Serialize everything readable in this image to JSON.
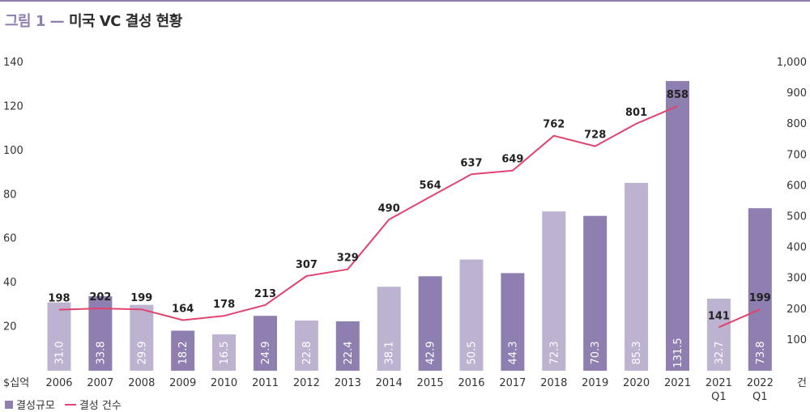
{
  "header": {
    "prefix": "그림 1 —",
    "title": "미국 VC 결성 현황"
  },
  "chart_data": {
    "type": "bar",
    "categories": [
      "2006",
      "2007",
      "2008",
      "2009",
      "2010",
      "2011",
      "2012",
      "2013",
      "2014",
      "2015",
      "2016",
      "2017",
      "2018",
      "2019",
      "2020",
      "2021",
      "2021 Q1",
      "2022 Q1"
    ],
    "category_lines": [
      [
        "2006"
      ],
      [
        "2007"
      ],
      [
        "2008"
      ],
      [
        "2009"
      ],
      [
        "2010"
      ],
      [
        "2011"
      ],
      [
        "2012"
      ],
      [
        "2013"
      ],
      [
        "2014"
      ],
      [
        "2015"
      ],
      [
        "2016"
      ],
      [
        "2017"
      ],
      [
        "2018"
      ],
      [
        "2019"
      ],
      [
        "2020"
      ],
      [
        "2021"
      ],
      [
        "2021",
        "Q1"
      ],
      [
        "2022",
        "Q1"
      ]
    ],
    "series": [
      {
        "name": "결성규모",
        "type": "bar",
        "axis": "left",
        "values": [
          31.0,
          33.8,
          29.9,
          18.2,
          16.5,
          24.9,
          22.8,
          22.4,
          38.1,
          42.9,
          50.5,
          44.3,
          72.3,
          70.3,
          85.3,
          131.5,
          32.7,
          73.8
        ],
        "value_labels": [
          "31.0",
          "33.8",
          "29.9",
          "18.2",
          "16.5",
          "24.9",
          "22.8",
          "22.4",
          "38.1",
          "42.9",
          "50.5",
          "44.3",
          "72.3",
          "70.3",
          "85.3",
          "131.5",
          "32.7",
          "73.8"
        ],
        "shade": [
          "light",
          "dark",
          "light",
          "dark",
          "light",
          "dark",
          "light",
          "dark",
          "light",
          "dark",
          "light",
          "dark",
          "light",
          "dark",
          "light",
          "dark",
          "light",
          "dark"
        ]
      },
      {
        "name": "결성 건수",
        "type": "line",
        "axis": "right",
        "values": [
          198,
          202,
          199,
          164,
          178,
          213,
          307,
          329,
          490,
          564,
          637,
          649,
          762,
          728,
          801,
          858,
          141,
          199
        ],
        "value_labels": [
          "198",
          "202",
          "199",
          "164",
          "178",
          "213",
          "307",
          "329",
          "490",
          "564",
          "637",
          "649",
          "762",
          "728",
          "801",
          "858",
          "141",
          "199"
        ],
        "segments": [
          [
            0,
            15
          ],
          [
            16,
            17
          ]
        ]
      }
    ],
    "y_left": {
      "ticks": [
        20,
        40,
        60,
        80,
        100,
        120,
        140
      ],
      "tick_labels": [
        "20",
        "40",
        "60",
        "80",
        "100",
        "120",
        "140"
      ],
      "range": [
        0,
        140
      ],
      "unit": "$십억"
    },
    "y_right": {
      "ticks": [
        100,
        200,
        300,
        400,
        500,
        600,
        700,
        800,
        900,
        1000
      ],
      "tick_labels": [
        "100",
        "200",
        "300",
        "400",
        "500",
        "600",
        "700",
        "800",
        "900",
        "1,000"
      ],
      "range": [
        0,
        1000
      ],
      "unit": "건"
    },
    "grid": false,
    "legend_position": "bottom-left",
    "colors": {
      "bar_light": "#bdb3d1",
      "bar_dark": "#8e7fb0",
      "line": "#e0446f"
    }
  },
  "legend": {
    "bar_label": "결성규모",
    "line_label": "결성 건수"
  }
}
